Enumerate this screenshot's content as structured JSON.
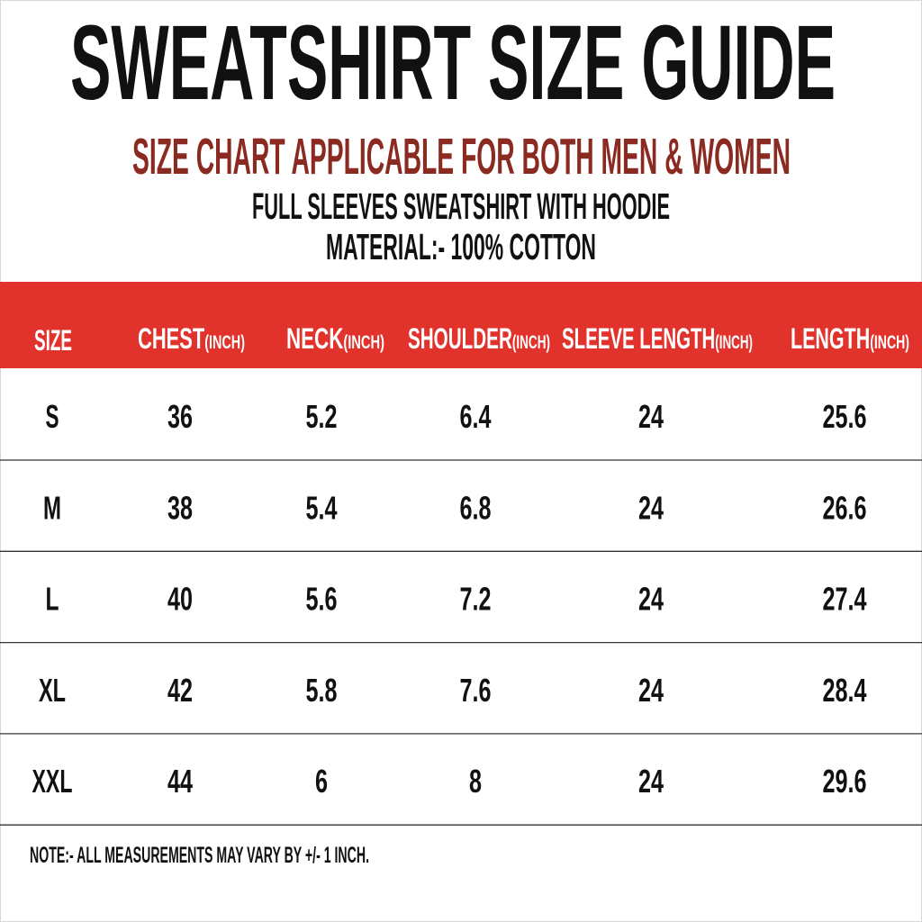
{
  "title": "SWEATSHIRT SIZE GUIDE",
  "subtitle": "SIZE CHART APPLICABLE FOR BOTH MEN & WOMEN",
  "product_line": "FULL SLEEVES SWEATSHIRT WITH HOODIE",
  "material_line": "MATERIAL:- 100% COTTON",
  "colors": {
    "header_band": "#e1322c",
    "subtitle": "#8a2a20",
    "text": "#111111",
    "header_text": "#ffffff"
  },
  "table": {
    "headers": [
      {
        "label": "SIZE",
        "unit": ""
      },
      {
        "label": "CHEST",
        "unit": "(INCH)"
      },
      {
        "label": "NECK",
        "unit": "(INCH)"
      },
      {
        "label": "SHOULDER",
        "unit": "(INCH)"
      },
      {
        "label": "SLEEVE LENGTH",
        "unit": "(INCH)"
      },
      {
        "label": "LENGTH",
        "unit": "(INCH)"
      }
    ],
    "rows": [
      [
        "S",
        "36",
        "5.2",
        "6.4",
        "24",
        "25.6"
      ],
      [
        "M",
        "38",
        "5.4",
        "6.8",
        "24",
        "26.6"
      ],
      [
        "L",
        "40",
        "5.6",
        "7.2",
        "24",
        "27.4"
      ],
      [
        "XL",
        "42",
        "5.8",
        "7.6",
        "24",
        "28.4"
      ],
      [
        "XXL",
        "44",
        "6",
        "8",
        "24",
        "29.6"
      ]
    ]
  },
  "note": "NOTE:- ALL MEASUREMENTS MAY VARY BY +/- 1 INCH."
}
